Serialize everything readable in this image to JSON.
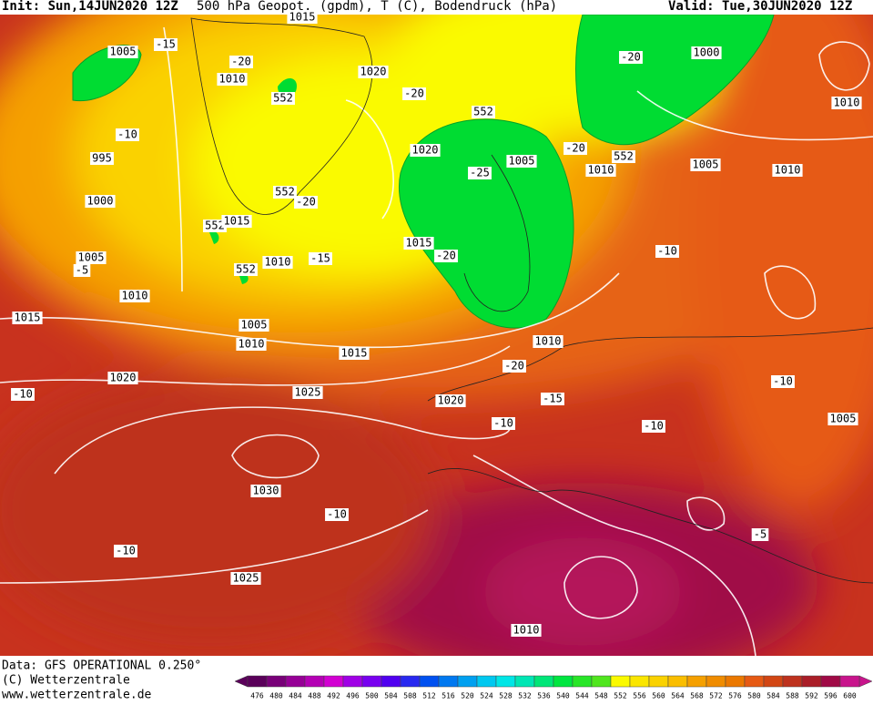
{
  "header": {
    "init": "Init: Sun,14JUN2020 12Z",
    "title": "500 hPa Geopot. (gpdm), T (C), Bodendruck (hPa)",
    "valid": "Valid: Tue,30JUN2020 12Z"
  },
  "footer": {
    "source": "Data: GFS OPERATIONAL 0.250°",
    "copyright": "(C) Wetterzentrale",
    "url": "www.wetterzentrale.de"
  },
  "contour_labels": [
    "1015",
    "1005",
    "-15",
    "-20",
    "1010",
    "552",
    "1020",
    "-20",
    "552",
    "-20",
    "1000",
    "1010",
    "-10",
    "995",
    "1020",
    "1005",
    "-25",
    "-20",
    "552",
    "1010",
    "1005",
    "1010",
    "1000",
    "552",
    "-20",
    "552",
    "1015",
    "1015",
    "-20",
    "-10",
    "1005",
    "-5",
    "552",
    "1010",
    "-15",
    "1010",
    "1015",
    "1005",
    "1010",
    "1015",
    "1010",
    "-20",
    "1020",
    "-10",
    "1025",
    "1020",
    "-15",
    "-10",
    "-10",
    "-10",
    "1005",
    "1030",
    "-10",
    "-10",
    "-5",
    "1025",
    "1010"
  ],
  "colorbar": {
    "values": [
      476,
      480,
      484,
      488,
      492,
      496,
      500,
      504,
      508,
      512,
      516,
      520,
      524,
      528,
      532,
      536,
      540,
      544,
      548,
      552,
      556,
      560,
      564,
      568,
      572,
      576,
      580,
      584,
      588,
      592,
      596,
      600
    ],
    "colors": [
      "#5a005a",
      "#780078",
      "#960096",
      "#b400b4",
      "#d200d2",
      "#a000e6",
      "#7800f0",
      "#5000f0",
      "#2828f0",
      "#0050f0",
      "#0078f0",
      "#00a0f0",
      "#00c8f0",
      "#00e6e6",
      "#00e6b4",
      "#00e678",
      "#00e640",
      "#28e628",
      "#50e61e",
      "#fafa00",
      "#fae600",
      "#fad200",
      "#fabe00",
      "#f5a000",
      "#f08c00",
      "#eb7800",
      "#e65a14",
      "#d24614",
      "#be321e",
      "#aa1e28",
      "#a00a46",
      "#c8148c"
    ]
  }
}
